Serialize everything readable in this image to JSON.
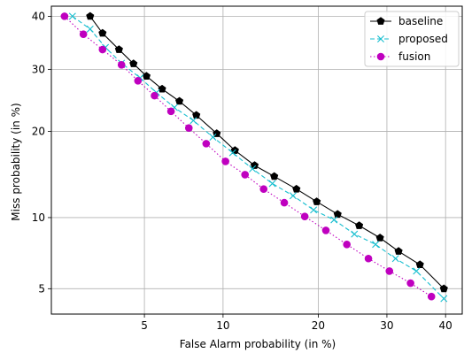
{
  "chart_data": {
    "type": "line",
    "title": "",
    "xlabel": "False Alarm probability (in %)",
    "ylabel": "Miss probability (in %)",
    "x_scale": "normal-deviate",
    "y_scale": "normal-deviate",
    "xlim": [
      1.9,
      43
    ],
    "ylim": [
      3.8,
      42
    ],
    "x_ticks": [
      5,
      10,
      20,
      30,
      40
    ],
    "y_ticks": [
      5,
      10,
      20,
      30,
      40
    ],
    "x_tick_labels": [
      "5",
      "10",
      "20",
      "30",
      "40"
    ],
    "y_tick_labels": [
      "5",
      "10",
      "20",
      "30",
      "40"
    ],
    "grid": true,
    "legend_position": "top-right",
    "series": [
      {
        "name": "baseline",
        "color": "#000000",
        "linestyle": "solid",
        "marker": "pentagon",
        "points": [
          [
            2.9,
            40.0
          ],
          [
            3.3,
            36.7
          ],
          [
            3.9,
            33.6
          ],
          [
            4.5,
            31.0
          ],
          [
            5.1,
            28.8
          ],
          [
            5.9,
            26.6
          ],
          [
            6.9,
            24.6
          ],
          [
            8.0,
            22.4
          ],
          [
            9.5,
            19.7
          ],
          [
            11.0,
            17.4
          ],
          [
            12.8,
            15.5
          ],
          [
            14.8,
            14.2
          ],
          [
            17.3,
            12.8
          ],
          [
            19.8,
            11.5
          ],
          [
            22.6,
            10.3
          ],
          [
            25.7,
            9.3
          ],
          [
            28.9,
            8.3
          ],
          [
            31.9,
            7.3
          ],
          [
            35.5,
            6.4
          ],
          [
            39.7,
            5.0
          ]
        ]
      },
      {
        "name": "proposed",
        "color": "#17BECF",
        "linestyle": "dashed",
        "marker": "x",
        "points": [
          [
            2.4,
            40.0
          ],
          [
            2.9,
            37.5
          ],
          [
            3.4,
            34.0
          ],
          [
            4.0,
            31.1
          ],
          [
            4.8,
            28.5
          ],
          [
            5.6,
            26.0
          ],
          [
            6.6,
            23.6
          ],
          [
            7.8,
            21.6
          ],
          [
            9.2,
            19.2
          ],
          [
            10.8,
            17.1
          ],
          [
            12.6,
            15.1
          ],
          [
            14.6,
            13.4
          ],
          [
            16.9,
            12.1
          ],
          [
            19.4,
            10.7
          ],
          [
            22.1,
            9.8
          ],
          [
            25.0,
            8.6
          ],
          [
            28.2,
            7.8
          ],
          [
            31.4,
            6.8
          ],
          [
            34.9,
            6.0
          ],
          [
            39.7,
            4.5
          ]
        ]
      },
      {
        "name": "fusion",
        "color": "#BF00BF",
        "linestyle": "dotted",
        "marker": "circle",
        "points": [
          [
            2.2,
            40.0
          ],
          [
            2.7,
            36.5
          ],
          [
            3.3,
            33.6
          ],
          [
            4.0,
            30.8
          ],
          [
            4.7,
            28.0
          ],
          [
            5.5,
            25.5
          ],
          [
            6.4,
            23.0
          ],
          [
            7.5,
            20.5
          ],
          [
            8.7,
            18.3
          ],
          [
            10.2,
            16.0
          ],
          [
            11.9,
            14.4
          ],
          [
            13.7,
            12.8
          ],
          [
            15.9,
            11.4
          ],
          [
            18.3,
            10.1
          ],
          [
            21.0,
            8.9
          ],
          [
            23.9,
            7.8
          ],
          [
            27.1,
            6.8
          ],
          [
            30.4,
            6.0
          ],
          [
            33.9,
            5.3
          ],
          [
            37.5,
            4.6
          ]
        ]
      }
    ]
  }
}
